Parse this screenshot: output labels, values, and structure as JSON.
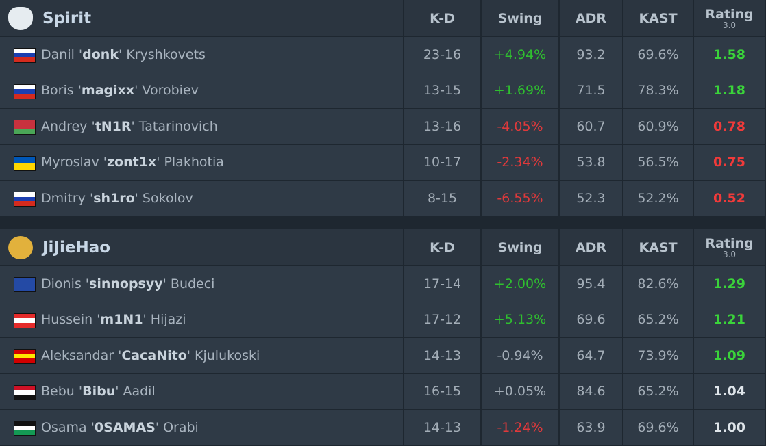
{
  "teams": [
    {
      "name": "Spirit",
      "headers": [
        "K-D",
        "Swing",
        "ADR",
        "KAST"
      ],
      "rating_header": "Rating",
      "rating_sub": "3.0",
      "rows": [
        {
          "name_before": "Danil '",
          "nick": "donk",
          "name_after": "' Kryshkovets",
          "kd": "23-16",
          "swing": "+4.94%",
          "swing_color": "#2fbf2f",
          "adr": "93.2",
          "kast": "69.6%",
          "rating": "1.58",
          "rating_color": "#3ad33a"
        },
        {
          "name_before": "Boris '",
          "nick": "magixx",
          "name_after": "' Vorobiev",
          "kd": "13-15",
          "swing": "+1.69%",
          "swing_color": "#2fbf2f",
          "adr": "71.5",
          "kast": "78.3%",
          "rating": "1.18",
          "rating_color": "#3ad33a"
        },
        {
          "name_before": "Andrey '",
          "nick": "tN1R",
          "name_after": "' Tatarinovich",
          "kd": "13-16",
          "swing": "-4.05%",
          "swing_color": "#e0393b",
          "adr": "60.7",
          "kast": "60.9%",
          "rating": "0.78",
          "rating_color": "#f03a3a"
        },
        {
          "name_before": "Myroslav '",
          "nick": "zont1x",
          "name_after": "' Plakhotia",
          "kd": "10-17",
          "swing": "-2.34%",
          "swing_color": "#e0393b",
          "adr": "53.8",
          "kast": "56.5%",
          "rating": "0.75",
          "rating_color": "#f03a3a"
        },
        {
          "name_before": "Dmitry '",
          "nick": "sh1ro",
          "name_after": "' Sokolov",
          "kd": "8-15",
          "swing": "-6.55%",
          "swing_color": "#e0393b",
          "adr": "52.3",
          "kast": "52.2%",
          "rating": "0.52",
          "rating_color": "#f03a3a"
        }
      ]
    },
    {
      "name": "JiJieHao",
      "headers": [
        "K-D",
        "Swing",
        "ADR",
        "KAST"
      ],
      "rating_header": "Rating",
      "rating_sub": "3.0",
      "rows": [
        {
          "name_before": "Dionis '",
          "nick": "sinnopsyy",
          "name_after": "' Budeci",
          "kd": "17-14",
          "swing": "+2.00%",
          "swing_color": "#2fbf2f",
          "adr": "95.4",
          "kast": "82.6%",
          "rating": "1.29",
          "rating_color": "#3ad33a"
        },
        {
          "name_before": "Hussein '",
          "nick": "m1N1",
          "name_after": "' Hijazi",
          "kd": "17-12",
          "swing": "+5.13%",
          "swing_color": "#2fbf2f",
          "adr": "69.6",
          "kast": "65.2%",
          "rating": "1.21",
          "rating_color": "#3ad33a"
        },
        {
          "name_before": "Aleksandar '",
          "nick": "CacaNito",
          "name_after": "' Kjulukoski",
          "kd": "14-13",
          "swing": "-0.94%",
          "swing_color": "#a3adb7",
          "adr": "64.7",
          "kast": "73.9%",
          "rating": "1.09",
          "rating_color": "#3ad33a"
        },
        {
          "name_before": "Bebu '",
          "nick": "Bibu",
          "name_after": "' Aadil",
          "kd": "16-15",
          "swing": "+0.05%",
          "swing_color": "#a3adb7",
          "adr": "84.6",
          "kast": "65.2%",
          "rating": "1.04",
          "rating_color": "#dfe5ea"
        },
        {
          "name_before": "Osama '",
          "nick": "0SAMAS",
          "name_after": "' Orabi",
          "kd": "14-13",
          "swing": "-1.24%",
          "swing_color": "#e0393b",
          "adr": "63.9",
          "kast": "69.6%",
          "rating": "1.00",
          "rating_color": "#dfe5ea"
        }
      ]
    }
  ]
}
